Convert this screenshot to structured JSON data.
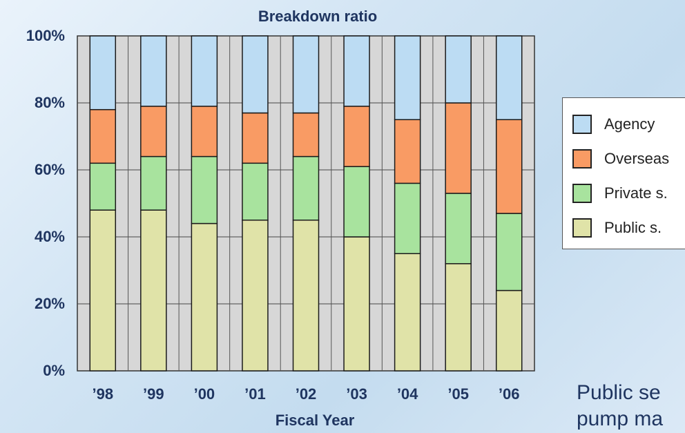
{
  "chart_data": {
    "type": "bar",
    "stacked": true,
    "title": "Breakdown ratio",
    "xlabel": "Fiscal Year",
    "ylabel": "",
    "ylim": [
      0,
      100
    ],
    "y_ticks": [
      "0%",
      "20%",
      "40%",
      "60%",
      "80%",
      "100%"
    ],
    "categories": [
      "’98",
      "’99",
      "’00",
      "’01",
      "’02",
      "’03",
      "’04",
      "’05",
      "’06"
    ],
    "series": [
      {
        "name": "Public s.",
        "color": "#e0e3a8",
        "values": [
          48,
          48,
          44,
          45,
          45,
          40,
          35,
          32,
          24
        ]
      },
      {
        "name": "Private s.",
        "color": "#a8e39e",
        "values": [
          14,
          16,
          20,
          17,
          19,
          21,
          21,
          21,
          23
        ]
      },
      {
        "name": "Overseas",
        "color": "#f99b64",
        "values": [
          16,
          15,
          15,
          15,
          13,
          18,
          19,
          27,
          28
        ]
      },
      {
        "name": "Agency",
        "color": "#bcdcf3",
        "values": [
          22,
          21,
          21,
          23,
          23,
          21,
          25,
          20,
          25
        ]
      }
    ],
    "legend_order": [
      "Agency",
      "Overseas",
      "Private s.",
      "Public s."
    ],
    "legend_position": "right",
    "grid": true
  },
  "caption": {
    "text": "Public se\npump ma"
  }
}
